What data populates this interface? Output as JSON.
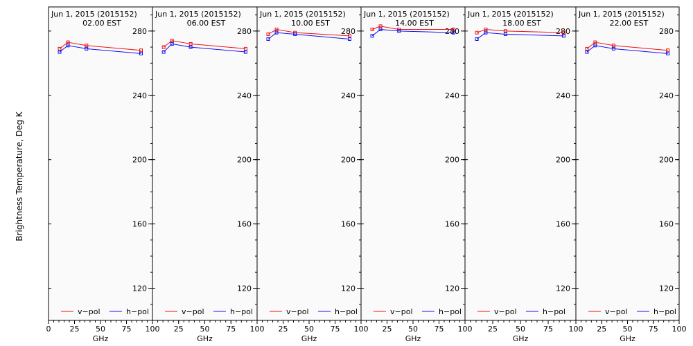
{
  "chart_data": {
    "type": "line",
    "ylabel": "Brightness Temperature, Deg K",
    "ylim": [
      100,
      295
    ],
    "xlim": [
      0,
      100
    ],
    "yticks": [
      120,
      160,
      200,
      240,
      280
    ],
    "xticks": [
      0,
      25,
      50,
      75,
      100
    ],
    "xtick_labels": [
      "0",
      "25",
      "50",
      "75",
      "100"
    ],
    "ytick_labels": [
      "120",
      "160",
      "200",
      "240",
      "280"
    ],
    "legend": [
      {
        "name": "v−pol",
        "color": "#ee1111"
      },
      {
        "name": "h−pol",
        "color": "#1111ee"
      }
    ],
    "x": [
      10.7,
      18.7,
      36.5,
      89.0
    ],
    "panels": [
      {
        "title_line1": "Jun  1, 2015 (2015152)",
        "title_line2": "02.00 EST",
        "xlabel": "GHz",
        "series": [
          {
            "name": "v−pol",
            "values": [
              269,
              273,
              271,
              268
            ]
          },
          {
            "name": "h−pol",
            "values": [
              267,
              271,
              269,
              266
            ]
          }
        ]
      },
      {
        "title_line1": "Jun  1, 2015 (2015152)",
        "title_line2": "06.00 EST",
        "xlabel": "GHz",
        "series": [
          {
            "name": "v−pol",
            "values": [
              270,
              274,
              272,
              269
            ]
          },
          {
            "name": "h−pol",
            "values": [
              267,
              272,
              270,
              267
            ]
          }
        ]
      },
      {
        "title_line1": "Jun  1, 2015 (2015152)",
        "title_line2": "10.00 EST",
        "xlabel": "GHz",
        "series": [
          {
            "name": "v−pol",
            "values": [
              278,
              281,
              279,
              277
            ]
          },
          {
            "name": "h−pol",
            "values": [
              275,
              279,
              278,
              275
            ]
          }
        ]
      },
      {
        "title_line1": "Jun  1, 2015 (2015152)",
        "title_line2": "14.00 EST",
        "xlabel": "GHz",
        "series": [
          {
            "name": "v−pol",
            "values": [
              281,
              283,
              281,
              281
            ]
          },
          {
            "name": "h−pol",
            "values": [
              277,
              281,
              280,
              279
            ]
          }
        ]
      },
      {
        "title_line1": "Jun  1, 2015 (2015152)",
        "title_line2": "18.00 EST",
        "xlabel": "GHz",
        "series": [
          {
            "name": "v−pol",
            "values": [
              279,
              281,
              280,
              279
            ]
          },
          {
            "name": "h−pol",
            "values": [
              275,
              279,
              278,
              277
            ]
          }
        ]
      },
      {
        "title_line1": "Jun  1, 2015 (2015152)",
        "title_line2": "22.00 EST",
        "xlabel": "GHz",
        "series": [
          {
            "name": "v−pol",
            "values": [
              269,
              273,
              271,
              268
            ]
          },
          {
            "name": "h−pol",
            "values": [
              267,
              271,
              269,
              266
            ]
          }
        ]
      }
    ]
  }
}
